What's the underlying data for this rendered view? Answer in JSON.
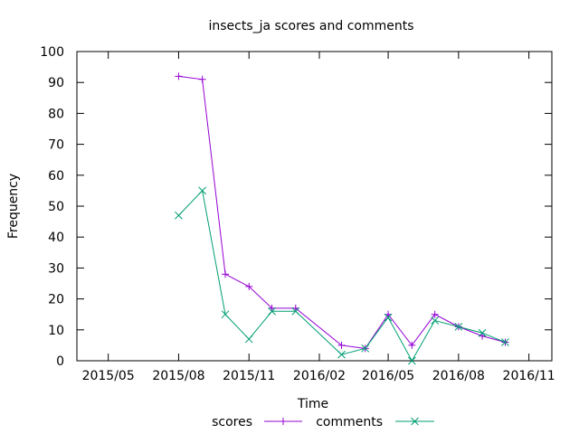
{
  "chart_data": {
    "type": "line",
    "title": "insects_ja scores and comments",
    "xlabel": "Time",
    "ylabel": "Frequency",
    "ylim": [
      0,
      100
    ],
    "yticks": [
      0,
      10,
      20,
      30,
      40,
      50,
      60,
      70,
      80,
      90,
      100
    ],
    "xlim": [
      "2015-03-21",
      "2016-12-01"
    ],
    "xticks": [
      "2015-05-01",
      "2015-08-01",
      "2015-11-01",
      "2016-02-01",
      "2016-05-01",
      "2016-08-01",
      "2016-11-01"
    ],
    "xtick_labels": [
      "2015/05",
      "2015/08",
      "2015/11",
      "2016/02",
      "2016/05",
      "2016/08",
      "2016/11"
    ],
    "x": [
      "2015-08-01",
      "2015-09-01",
      "2015-10-01",
      "2015-11-01",
      "2015-12-01",
      "2016-01-01",
      "2016-02-01",
      "2016-03-01",
      "2016-04-01",
      "2016-05-01",
      "2016-06-01",
      "2016-07-01",
      "2016-08-01",
      "2016-09-01",
      "2016-10-01"
    ],
    "series": [
      {
        "name": "scores",
        "color": "#9400d3",
        "marker": "plus",
        "values": [
          92,
          91,
          28,
          24,
          17,
          17,
          null,
          5,
          4,
          15,
          5,
          15,
          11,
          8,
          6
        ]
      },
      {
        "name": "comments",
        "color": "#009e73",
        "marker": "cross",
        "values": [
          47,
          55,
          15,
          7,
          16,
          16,
          null,
          2,
          4,
          14,
          0,
          13,
          11,
          9,
          6
        ]
      }
    ],
    "grid": false,
    "legend": "bottom-center"
  }
}
